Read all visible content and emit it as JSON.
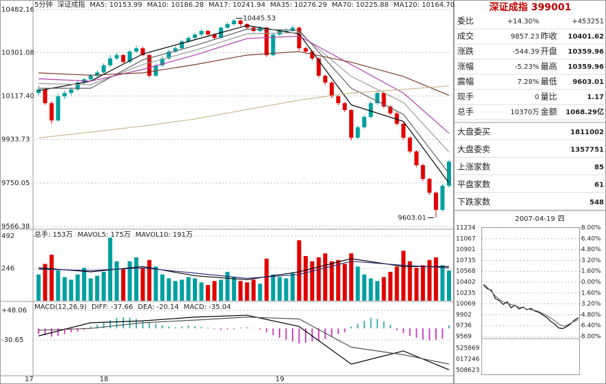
{
  "chart_data": [
    {
      "type": "candlestick",
      "period": "5分钟",
      "title": "深证成指",
      "categories": [
        "17",
        null,
        null,
        null,
        null,
        null,
        null,
        null,
        null,
        null,
        "18",
        null,
        null,
        null,
        null,
        null,
        null,
        null,
        null,
        null,
        null,
        null,
        null,
        null,
        null,
        null,
        null,
        null,
        null,
        null,
        null,
        null,
        null,
        null,
        null,
        null,
        null,
        "19",
        null,
        null,
        null,
        null,
        null,
        null,
        null,
        null,
        null,
        null,
        null,
        null,
        null,
        null,
        null,
        null,
        null,
        null,
        null,
        null,
        null,
        null,
        null,
        null,
        null,
        null
      ],
      "open": [
        10130,
        10145,
        10087,
        10014,
        10116,
        10130,
        10145,
        10174,
        10188,
        10203,
        10217,
        10247,
        10276,
        10290,
        10261,
        10305,
        10319,
        10290,
        10203,
        10247,
        10276,
        10305,
        10319,
        10348,
        10363,
        10377,
        10392,
        10377,
        10363,
        10406,
        10421,
        10436,
        10421,
        10406,
        10392,
        10406,
        10290,
        10377,
        10392,
        10392,
        10406,
        10319,
        10305,
        10276,
        10203,
        10174,
        10116,
        10087,
        10058,
        9941,
        9985,
        10029,
        10087,
        10130,
        10073,
        10044,
        10000,
        9941,
        9883,
        9825,
        9767,
        9709,
        9636,
        9738
      ],
      "high": [
        10160,
        10150,
        10095,
        10125,
        10140,
        10150,
        10180,
        10195,
        10210,
        10225,
        10255,
        10290,
        10300,
        10295,
        10312,
        10330,
        10325,
        10295,
        10255,
        10285,
        10312,
        10328,
        10355,
        10370,
        10385,
        10400,
        10398,
        10382,
        10412,
        10430,
        10445.53,
        10440,
        10425,
        10410,
        10412,
        10410,
        10385,
        10400,
        10402,
        10415,
        10410,
        10325,
        10310,
        10280,
        10208,
        10180,
        10122,
        10092,
        10062,
        9992,
        10036,
        10095,
        10138,
        10135,
        10078,
        10050,
        10005,
        9948,
        9890,
        9832,
        9772,
        9714,
        9745,
        9848
      ],
      "low": [
        10120,
        10080,
        10000,
        10010,
        10105,
        10120,
        10140,
        10165,
        10180,
        10195,
        10210,
        10240,
        10270,
        10255,
        10255,
        10300,
        10285,
        10195,
        10198,
        10240,
        10270,
        10300,
        10315,
        10340,
        10355,
        10370,
        10370,
        10355,
        10358,
        10400,
        10415,
        10412,
        10398,
        10385,
        10386,
        10282,
        10285,
        10370,
        10384,
        10388,
        10310,
        10296,
        10268,
        10195,
        10165,
        10108,
        10078,
        10050,
        9930,
        9935,
        9980,
        10022,
        10080,
        10066,
        10036,
        9992,
        9932,
        9875,
        9816,
        9758,
        9700,
        9603.01,
        9630,
        9730
      ],
      "close": [
        10145,
        10087,
        10014,
        10116,
        10130,
        10145,
        10174,
        10188,
        10203,
        10217,
        10247,
        10276,
        10290,
        10261,
        10305,
        10319,
        10290,
        10203,
        10247,
        10276,
        10305,
        10319,
        10348,
        10363,
        10377,
        10392,
        10377,
        10363,
        10406,
        10421,
        10436,
        10421,
        10406,
        10392,
        10406,
        10290,
        10377,
        10392,
        10392,
        10406,
        10319,
        10305,
        10276,
        10203,
        10174,
        10116,
        10087,
        10058,
        9941,
        9985,
        10029,
        10087,
        10130,
        10073,
        10044,
        10000,
        9941,
        9883,
        9825,
        9767,
        9709,
        9636,
        9738,
        9840
      ],
      "up_color": "#00a0a0",
      "down_color": "#e00000",
      "ylim": [
        9566.38,
        10482.16
      ],
      "yticks": [
        9566.38,
        9750.05,
        9933.73,
        {
          "value": 10117.4,
          "label": "10117.40"
        },
        10301.08,
        10482.16
      ],
      "grid": true,
      "series": [
        {
          "name": "MA5: 10153.99",
          "color": "#000000",
          "x": [
            0,
            8,
            16,
            24,
            32,
            40,
            48,
            56,
            63
          ],
          "values": [
            10140,
            10180,
            10295,
            10355,
            10415,
            10380,
            10080,
            10010,
            9750
          ]
        },
        {
          "name": "MA10: 10186.28",
          "color": "#606060",
          "x": [
            0,
            8,
            16,
            24,
            32,
            40,
            48,
            56,
            63
          ],
          "values": [
            10150,
            10150,
            10270,
            10330,
            10400,
            10395,
            10150,
            10040,
            9790
          ]
        },
        {
          "name": "MA17: 10241.94",
          "color": "#9a9a9a",
          "x": [
            0,
            8,
            16,
            24,
            32,
            40,
            48,
            56,
            63
          ],
          "values": [
            10170,
            10165,
            10250,
            10310,
            10380,
            10385,
            10200,
            10090,
            9880
          ]
        },
        {
          "name": "MA35: 10276.29",
          "color": "#b040b0",
          "x": [
            0,
            8,
            16,
            24,
            32,
            40,
            48,
            56,
            63
          ],
          "values": [
            10190,
            10180,
            10230,
            10290,
            10360,
            10370,
            10250,
            10130,
            9960
          ]
        },
        {
          "name": "MA70: 10225.88",
          "color": "#7a3a2a",
          "x": [
            0,
            8,
            16,
            24,
            32,
            40,
            48,
            56,
            63
          ],
          "values": [
            10215,
            10205,
            10215,
            10250,
            10290,
            10305,
            10260,
            10200,
            10120
          ]
        },
        {
          "name": "MA120: 10164.70",
          "color": "#c8b888",
          "x": [
            0,
            8,
            16,
            24,
            32,
            40,
            48,
            56,
            63
          ],
          "values": [
            9940,
            9965,
            9990,
            10020,
            10060,
            10100,
            10130,
            10145,
            10160
          ]
        }
      ]
    },
    {
      "type": "bar",
      "ylim": [
        0,
        492
      ],
      "yticks": [
        246,
        492
      ],
      "series": [
        {
          "name": "总手: 153万",
          "color": "#e00000",
          "values": [
            200,
            280,
            350,
            230,
            180,
            160,
            200,
            250,
            170,
            190,
            220,
            480,
            300,
            240,
            300,
            330,
            250,
            310,
            260,
            200,
            170,
            150,
            160,
            180,
            170,
            140,
            120,
            150,
            160,
            220,
            180,
            150,
            140,
            160,
            130,
            320,
            200,
            180,
            170,
            210,
            460,
            340,
            300,
            330,
            360,
            300,
            310,
            280,
            360,
            260,
            200,
            170,
            150,
            180,
            220,
            260,
            380,
            300,
            250,
            270,
            310,
            330,
            270,
            230
          ]
        }
      ],
      "lines": [
        {
          "name": "MAVOL5: 175万",
          "color": "#000000",
          "x": [
            0,
            8,
            16,
            24,
            32,
            40,
            48,
            56,
            63
          ],
          "values": [
            250,
            220,
            260,
            190,
            160,
            220,
            320,
            260,
            260
          ]
        },
        {
          "name": "MAVOL10: 191万",
          "color": "#303080",
          "x": [
            0,
            8,
            16,
            24,
            32,
            40,
            48,
            56,
            63
          ],
          "values": [
            240,
            230,
            250,
            210,
            170,
            200,
            300,
            270,
            250
          ]
        }
      ]
    },
    {
      "type": "macd",
      "title": "MACD(12,26,9)",
      "ylim": [
        -124,
        68
      ],
      "yticks": [
        -30.65,
        {
          "value": 48.06,
          "label": "+48.06"
        }
      ],
      "hist": {
        "name": "MACD: -35.04",
        "pos_color": "#40b0b0",
        "neg_color": "#d040c0",
        "values": [
          -15,
          -18,
          -22,
          -20,
          -15,
          -10,
          -8,
          -4,
          5,
          10,
          15,
          22,
          28,
          30,
          28,
          25,
          20,
          15,
          12,
          8,
          5,
          3,
          5,
          8,
          6,
          4,
          2,
          -2,
          -4,
          -3,
          -2,
          2,
          3,
          1,
          -3,
          -10,
          -18,
          -25,
          -30,
          -35,
          -40,
          -38,
          -35,
          -32,
          -28,
          -22,
          -15,
          -10,
          5,
          12,
          20,
          28,
          25,
          18,
          10,
          -5,
          -12,
          -20,
          -25,
          -30,
          -32,
          -30,
          -28,
          8
        ]
      },
      "series": [
        {
          "name": "DIFF: -37.66",
          "color": "#000000",
          "x": [
            0,
            8,
            16,
            24,
            32,
            40,
            48,
            56,
            63
          ],
          "values": [
            -20,
            15,
            20,
            30,
            35,
            5,
            -95,
            -60,
            -110
          ]
        },
        {
          "name": "DEA: -20.14",
          "color": "#505050",
          "x": [
            0,
            8,
            16,
            24,
            32,
            40,
            48,
            56,
            63
          ],
          "values": [
            -5,
            0,
            15,
            22,
            30,
            25,
            -50,
            -70,
            -95
          ]
        }
      ]
    },
    {
      "type": "line",
      "date": "2007-04-19",
      "weekday": "四",
      "ylim": [
        9569,
        11234
      ],
      "yticks": [
        11234,
        11067,
        10901,
        10735,
        10568,
        10402,
        10235,
        10069,
        9902,
        9736,
        9569
      ],
      "y2lim": [
        -8,
        8
      ],
      "y2ticks": [
        {
          "value": 8,
          "label": "8.00%"
        },
        {
          "value": 6.4,
          "label": "6.40%"
        },
        {
          "value": 4.8,
          "label": "4.80%"
        },
        {
          "value": 3.2,
          "label": "3.20%"
        },
        {
          "value": 1.6,
          "label": "1.60%"
        },
        {
          "value": 0,
          "label": "0.00%"
        },
        {
          "value": -1.6,
          "label": "1.60%"
        },
        {
          "value": -3.2,
          "label": "3.20%"
        },
        {
          "value": -4.8,
          "label": "4.80%"
        },
        {
          "value": -6.4,
          "label": "6.40%"
        },
        {
          "value": -8,
          "label": "8.00%"
        }
      ],
      "grid": true,
      "series": [
        {
          "color": "#000000",
          "values": [
            10360,
            10300,
            10280,
            10150,
            10120,
            10060,
            10100,
            10010,
            10050,
            9990,
            10020,
            9980,
            10000,
            9960,
            9940,
            9900,
            9860,
            9800,
            9760,
            9700,
            9690,
            9720,
            9760,
            9820,
            9857
          ]
        },
        {
          "color": "#707070",
          "values": [
            10370,
            10320,
            10260,
            10190,
            10140,
            10100,
            10080,
            10060,
            10040,
            10020,
            10010,
            9990,
            9980,
            9970,
            9950,
            9920,
            9890,
            9850,
            9810,
            9760,
            9730,
            9740,
            9770,
            9800,
            9830
          ]
        }
      ],
      "volume_labels": [
        "525869",
        "017246",
        "508623"
      ]
    }
  ],
  "quote_panel": {
    "title": "深证成指 399001",
    "rows": [
      [
        "委比",
        "+14.30%",
        "+453251"
      ],
      [
        "成交",
        "9857.23",
        "昨收",
        "10401.62"
      ],
      [
        "涨跌",
        "-544.39",
        "开盘",
        "10359.96"
      ],
      [
        "涨幅",
        "-5.23%",
        "最高",
        "10359.96"
      ],
      [
        "震幅",
        "7.28%",
        "最低",
        "9603.01"
      ],
      [
        "现手",
        "0",
        "量比",
        "1.17"
      ],
      [
        "总手",
        "10370万",
        "金额",
        "1068.29亿"
      ],
      [
        "大盘委买",
        "1811002"
      ],
      [
        "大盘委卖",
        "1357751"
      ],
      [
        "上涨家数",
        "85"
      ],
      [
        "平盘家数",
        "61"
      ],
      [
        "下跌家数",
        "548"
      ]
    ]
  }
}
